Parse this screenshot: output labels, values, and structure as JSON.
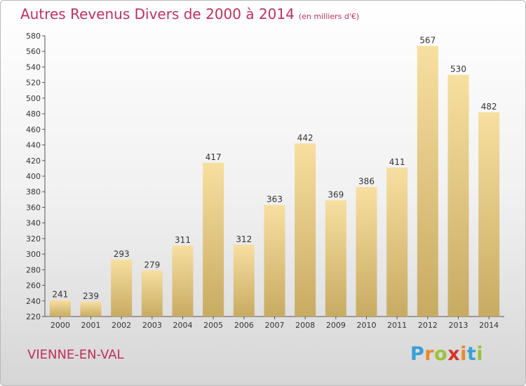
{
  "header": {
    "title": "Autres Revenus Divers de 2000 à 2014",
    "subtitle": "(en milliers d'€)"
  },
  "footer": {
    "city": "VIENNE-EN-VAL",
    "logo_letters": [
      "P",
      "r",
      "o",
      "x",
      "i",
      "t",
      "i"
    ],
    "logo_colors": [
      "#3a9fd6",
      "#e8892a",
      "#9cc13a",
      "#d7322d",
      "#e8892a",
      "#3a9fd6",
      "#9cc13a"
    ]
  },
  "chart_data": {
    "type": "bar",
    "title": "Autres Revenus Divers de 2000 à 2014",
    "subtitle": "(en milliers d'€)",
    "categories": [
      "2000",
      "2001",
      "2002",
      "2003",
      "2004",
      "2005",
      "2006",
      "2007",
      "2008",
      "2009",
      "2010",
      "2011",
      "2012",
      "2013",
      "2014"
    ],
    "values": [
      241,
      239,
      293,
      279,
      311,
      417,
      312,
      363,
      442,
      369,
      386,
      411,
      567,
      530,
      482
    ],
    "ylim": [
      220,
      580
    ],
    "yticks": [
      220,
      240,
      260,
      280,
      300,
      320,
      340,
      360,
      380,
      400,
      420,
      440,
      460,
      480,
      500,
      520,
      540,
      560,
      580
    ],
    "grid": false,
    "bar_color_top": "#f7dfa0",
    "bar_color_bottom": "#c8ab62"
  }
}
